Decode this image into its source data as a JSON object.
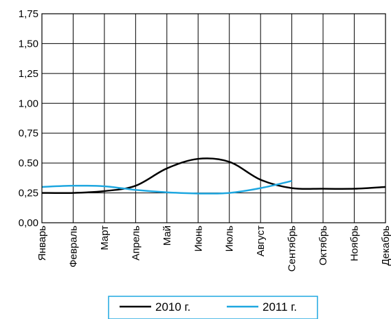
{
  "chart_data": {
    "type": "line",
    "categories": [
      "Январь",
      "Февраль",
      "Март",
      "Апрель",
      "Май",
      "Июнь",
      "Июль",
      "Август",
      "Сентябрь",
      "Октябрь",
      "Ноябрь",
      "Декабрь"
    ],
    "series": [
      {
        "name": "2010 г.",
        "color": "#000000",
        "values": [
          0.25,
          0.25,
          0.265,
          0.31,
          0.455,
          0.535,
          0.51,
          0.36,
          0.29,
          0.285,
          0.285,
          0.3
        ]
      },
      {
        "name": "2011 г.",
        "color": "#1ea7e0",
        "values": [
          0.3,
          0.31,
          0.305,
          0.275,
          0.255,
          0.245,
          0.25,
          0.29,
          0.35,
          null,
          null,
          null
        ]
      }
    ],
    "y_ticks": [
      "0,00",
      "0,25",
      "0.50",
      "0,75",
      "1,00",
      "1,25",
      "1,50",
      "1,75"
    ],
    "ylim": [
      0,
      1.75
    ],
    "grid": true,
    "legend_position": "bottom"
  }
}
